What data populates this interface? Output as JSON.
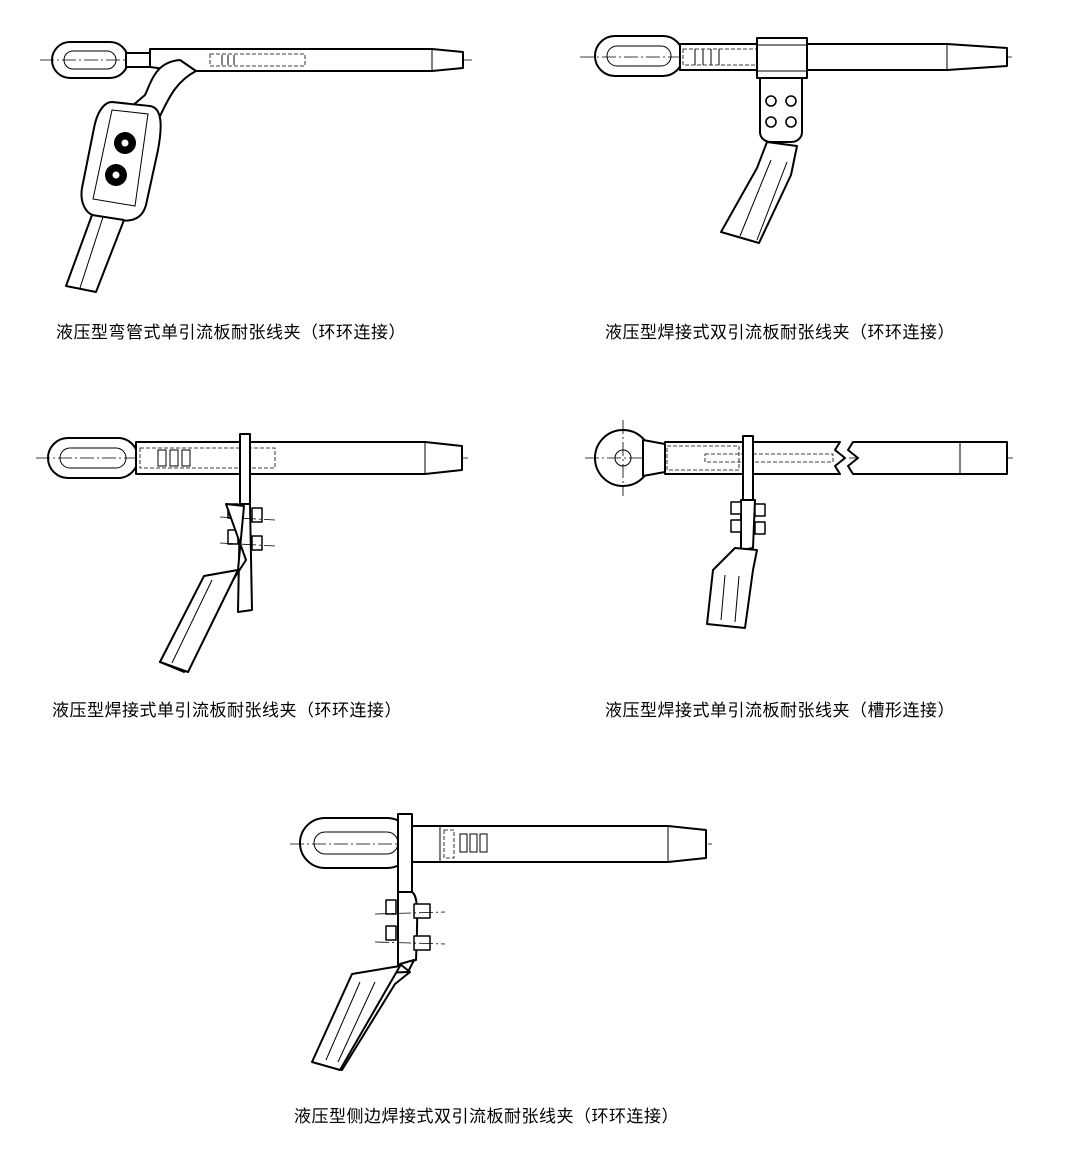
{
  "figures": [
    {
      "id": "fig1",
      "caption": "液压型弯管式单引流板耐张线夹（环环连接）"
    },
    {
      "id": "fig2",
      "caption": "液压型焊接式双引流板耐张线夹（环环连接）"
    },
    {
      "id": "fig3",
      "caption": "液压型焊接式单引流板耐张线夹（环环连接）"
    },
    {
      "id": "fig4",
      "caption": "液压型焊接式单引流板耐张线夹（槽形连接）"
    },
    {
      "id": "fig5",
      "caption": "液压型侧边焊接式双引流板耐张线夹（环环连接）"
    }
  ]
}
